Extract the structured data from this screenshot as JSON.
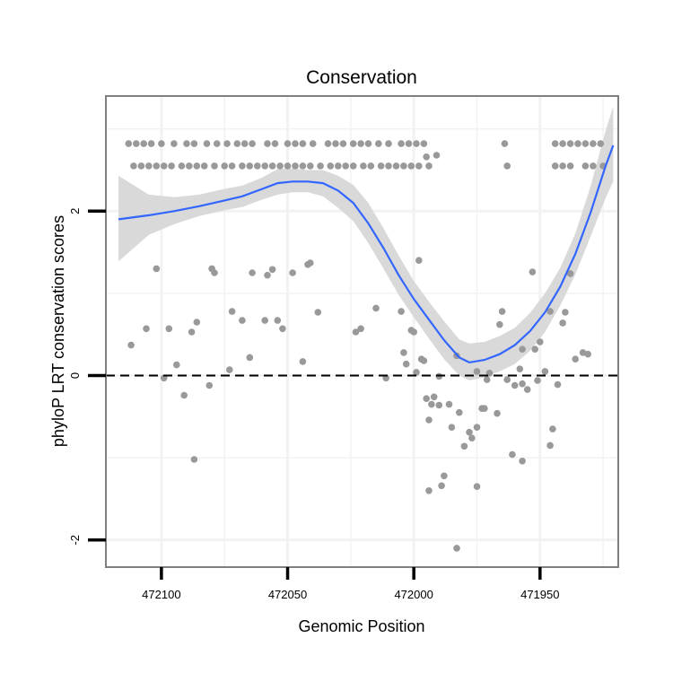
{
  "chart_data": {
    "type": "scatter",
    "title": "Conservation",
    "xlabel": "Genomic Position",
    "ylabel": "phyloP LRT conservation scores",
    "x_reversed": true,
    "xlim": [
      472122,
      471919
    ],
    "ylim": [
      -2.33,
      3.4
    ],
    "x_ticks": [
      472100,
      472050,
      472000,
      471950
    ],
    "x_tick_labels": [
      "472100",
      "472050",
      "472000",
      "471950"
    ],
    "y_ticks": [
      -2,
      0,
      2
    ],
    "y_tick_labels": [
      "-2",
      "0",
      "2"
    ],
    "reference_line": {
      "y": 0,
      "style": "dashed"
    },
    "grid": true,
    "colors": {
      "points": "#999999",
      "smooth": "#3366ff",
      "ribbon": "#d9d9d9",
      "grid": "#f2f2f2",
      "frame": "#7f7f7f"
    },
    "points": [
      [
        472113,
        2.82
      ],
      [
        472110,
        2.82
      ],
      [
        472107,
        2.82
      ],
      [
        472104,
        2.82
      ],
      [
        472100,
        2.82
      ],
      [
        472095,
        2.82
      ],
      [
        472090,
        2.82
      ],
      [
        472087,
        2.82
      ],
      [
        472082,
        2.82
      ],
      [
        472078,
        2.82
      ],
      [
        472074,
        2.82
      ],
      [
        472070,
        2.82
      ],
      [
        472067,
        2.82
      ],
      [
        472064,
        2.82
      ],
      [
        472058,
        2.82
      ],
      [
        472055,
        2.82
      ],
      [
        472050,
        2.82
      ],
      [
        472047,
        2.82
      ],
      [
        472044,
        2.82
      ],
      [
        472040,
        2.82
      ],
      [
        472034,
        2.82
      ],
      [
        472031,
        2.82
      ],
      [
        472028,
        2.82
      ],
      [
        472024,
        2.82
      ],
      [
        472021,
        2.82
      ],
      [
        472018,
        2.82
      ],
      [
        472014,
        2.82
      ],
      [
        472010,
        2.82
      ],
      [
        472005,
        2.82
      ],
      [
        472002,
        2.82
      ],
      [
        471999,
        2.82
      ],
      [
        471996,
        2.82
      ],
      [
        471964,
        2.82
      ],
      [
        471944,
        2.82
      ],
      [
        471941,
        2.82
      ],
      [
        471938,
        2.82
      ],
      [
        471935,
        2.82
      ],
      [
        471932,
        2.82
      ],
      [
        471929,
        2.82
      ],
      [
        471926,
        2.82
      ],
      [
        472111,
        2.55
      ],
      [
        472108,
        2.55
      ],
      [
        472105,
        2.55
      ],
      [
        472102,
        2.55
      ],
      [
        472099,
        2.55
      ],
      [
        472096,
        2.55
      ],
      [
        472092,
        2.55
      ],
      [
        472089,
        2.55
      ],
      [
        472086,
        2.55
      ],
      [
        472083,
        2.55
      ],
      [
        472079,
        2.55
      ],
      [
        472075,
        2.55
      ],
      [
        472072,
        2.55
      ],
      [
        472068,
        2.55
      ],
      [
        472065,
        2.55
      ],
      [
        472062,
        2.55
      ],
      [
        472059,
        2.55
      ],
      [
        472056,
        2.55
      ],
      [
        472053,
        2.55
      ],
      [
        472050,
        2.55
      ],
      [
        472047,
        2.55
      ],
      [
        472044,
        2.55
      ],
      [
        472041,
        2.55
      ],
      [
        472037,
        2.55
      ],
      [
        472033,
        2.55
      ],
      [
        472030,
        2.55
      ],
      [
        472027,
        2.55
      ],
      [
        472024,
        2.55
      ],
      [
        472020,
        2.55
      ],
      [
        472017,
        2.55
      ],
      [
        472013,
        2.55
      ],
      [
        472010,
        2.55
      ],
      [
        472007,
        2.55
      ],
      [
        472004,
        2.55
      ],
      [
        472001,
        2.55
      ],
      [
        471998,
        2.55
      ],
      [
        471994,
        2.55
      ],
      [
        471963,
        2.55
      ],
      [
        471944,
        2.55
      ],
      [
        471941,
        2.55
      ],
      [
        471938,
        2.55
      ],
      [
        471932,
        2.55
      ],
      [
        471929,
        2.55
      ],
      [
        471925,
        2.55
      ],
      [
        471991,
        2.68
      ],
      [
        471995,
        2.66
      ],
      [
        472112,
        0.37
      ],
      [
        472102,
        1.3
      ],
      [
        472106,
        0.57
      ],
      [
        472099,
        -0.03
      ],
      [
        472097,
        0.57
      ],
      [
        472094,
        0.13
      ],
      [
        472091,
        -0.24
      ],
      [
        472088,
        0.53
      ],
      [
        472086,
        0.65
      ],
      [
        472087,
        -1.02
      ],
      [
        472081,
        -0.12
      ],
      [
        472080,
        1.3
      ],
      [
        472079,
        1.25
      ],
      [
        472073,
        0.07
      ],
      [
        472072,
        0.78
      ],
      [
        472068,
        0.67
      ],
      [
        472065,
        0.22
      ],
      [
        472064,
        1.25
      ],
      [
        472059,
        0.67
      ],
      [
        472058,
        1.22
      ],
      [
        472056,
        1.29
      ],
      [
        472054,
        0.67
      ],
      [
        472052,
        0.57
      ],
      [
        472048,
        1.25
      ],
      [
        472044,
        0.17
      ],
      [
        472042,
        1.35
      ],
      [
        472041,
        1.37
      ],
      [
        472038,
        0.77
      ],
      [
        472023,
        0.53
      ],
      [
        472021,
        0.57
      ],
      [
        472015,
        0.82
      ],
      [
        472011,
        -0.03
      ],
      [
        472005,
        0.78
      ],
      [
        472004,
        0.28
      ],
      [
        472003,
        0.14
      ],
      [
        472001,
        0.55
      ],
      [
        472000,
        0.53
      ],
      [
        471998,
        1.4
      ],
      [
        471999,
        0.04
      ],
      [
        471997,
        0.2
      ],
      [
        471996,
        0.18
      ],
      [
        471995,
        -0.28
      ],
      [
        471993,
        -0.35
      ],
      [
        471994,
        -0.54
      ],
      [
        471994,
        -1.4
      ],
      [
        471992,
        -0.26
      ],
      [
        471990,
        -0.36
      ],
      [
        471989,
        -1.34
      ],
      [
        471988,
        -1.22
      ],
      [
        471986,
        -0.35
      ],
      [
        471985,
        -0.63
      ],
      [
        471983,
        0.24
      ],
      [
        471982,
        -0.45
      ],
      [
        471980,
        -0.86
      ],
      [
        471978,
        -0.69
      ],
      [
        471977,
        -0.76
      ],
      [
        471975,
        0.05
      ],
      [
        471975,
        -1.35
      ],
      [
        471973,
        -0.4
      ],
      [
        471972,
        -0.4
      ],
      [
        471971,
        -0.05
      ],
      [
        471967,
        -0.46
      ],
      [
        471966,
        0.62
      ],
      [
        471965,
        0.78
      ],
      [
        471963,
        -0.05
      ],
      [
        471961,
        -0.96
      ],
      [
        471958,
        0.08
      ],
      [
        471957,
        0.32
      ],
      [
        471957,
        -1.04
      ],
      [
        471955,
        -0.17
      ],
      [
        471952,
        0.32
      ],
      [
        471953,
        1.26
      ],
      [
        471950,
        0.41
      ],
      [
        471948,
        0.05
      ],
      [
        471946,
        -0.85
      ],
      [
        471946,
        0.78
      ],
      [
        471945,
        -0.65
      ],
      [
        471943,
        -0.11
      ],
      [
        471941,
        0.64
      ],
      [
        471940,
        0.77
      ],
      [
        471938,
        1.24
      ],
      [
        471936,
        0.2
      ],
      [
        471933,
        0.28
      ],
      [
        471931,
        0.26
      ],
      [
        471983,
        -2.1
      ],
      [
        471960,
        -0.12
      ],
      [
        471957,
        -0.1
      ],
      [
        471970,
        0.03
      ],
      [
        471951,
        -0.06
      ],
      [
        471975,
        -0.63
      ],
      [
        471990,
        -0.01
      ]
    ],
    "smooth_line": [
      [
        472117,
        1.9
      ],
      [
        472105,
        1.95
      ],
      [
        472095,
        2.0
      ],
      [
        472085,
        2.06
      ],
      [
        472075,
        2.13
      ],
      [
        472068,
        2.18
      ],
      [
        472060,
        2.27
      ],
      [
        472054,
        2.34
      ],
      [
        472048,
        2.36
      ],
      [
        472042,
        2.36
      ],
      [
        472036,
        2.34
      ],
      [
        472030,
        2.25
      ],
      [
        472024,
        2.1
      ],
      [
        472018,
        1.85
      ],
      [
        472012,
        1.55
      ],
      [
        472006,
        1.22
      ],
      [
        472000,
        0.93
      ],
      [
        471994,
        0.68
      ],
      [
        471988,
        0.43
      ],
      [
        471982,
        0.22
      ],
      [
        471978,
        0.16
      ],
      [
        471972,
        0.19
      ],
      [
        471966,
        0.26
      ],
      [
        471960,
        0.37
      ],
      [
        471954,
        0.54
      ],
      [
        471948,
        0.77
      ],
      [
        471942,
        1.08
      ],
      [
        471936,
        1.48
      ],
      [
        471930,
        1.98
      ],
      [
        471924,
        2.55
      ],
      [
        471921,
        2.8
      ]
    ],
    "smooth_band": [
      [
        472117,
        1.39,
        2.43
      ],
      [
        472105,
        1.71,
        2.2
      ],
      [
        472095,
        1.84,
        2.17
      ],
      [
        472085,
        1.94,
        2.2
      ],
      [
        472075,
        2.01,
        2.27
      ],
      [
        472068,
        2.05,
        2.31
      ],
      [
        472060,
        2.14,
        2.41
      ],
      [
        472054,
        2.2,
        2.51
      ],
      [
        472048,
        2.23,
        2.52
      ],
      [
        472042,
        2.23,
        2.5
      ],
      [
        472036,
        2.18,
        2.5
      ],
      [
        472030,
        2.04,
        2.43
      ],
      [
        472024,
        1.88,
        2.32
      ],
      [
        472018,
        1.61,
        2.1
      ],
      [
        472012,
        1.3,
        1.79
      ],
      [
        472006,
        0.98,
        1.46
      ],
      [
        472000,
        0.71,
        1.15
      ],
      [
        471994,
        0.45,
        0.9
      ],
      [
        471988,
        0.2,
        0.66
      ],
      [
        471982,
        0.0,
        0.44
      ],
      [
        471978,
        -0.06,
        0.39
      ],
      [
        471972,
        -0.02,
        0.41
      ],
      [
        471966,
        0.05,
        0.48
      ],
      [
        471960,
        0.14,
        0.58
      ],
      [
        471954,
        0.3,
        0.76
      ],
      [
        471948,
        0.53,
        1.0
      ],
      [
        471942,
        0.85,
        1.31
      ],
      [
        471936,
        1.23,
        1.73
      ],
      [
        471930,
        1.69,
        2.3
      ],
      [
        471924,
        2.16,
        2.98
      ],
      [
        471921,
        2.36,
        3.27
      ]
    ]
  }
}
